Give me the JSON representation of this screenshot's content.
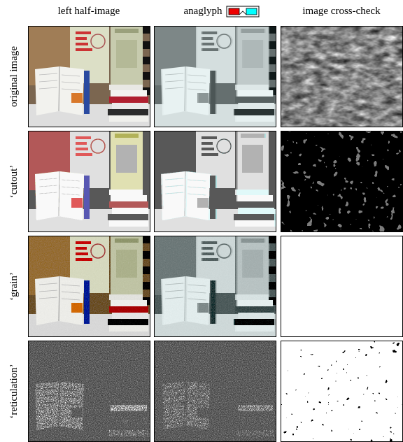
{
  "columns": [
    "left half-image",
    "anaglyph",
    "image cross-check"
  ],
  "rows": [
    "original image",
    "‘cutout’",
    "‘grain’",
    "‘reticulation’"
  ]
}
